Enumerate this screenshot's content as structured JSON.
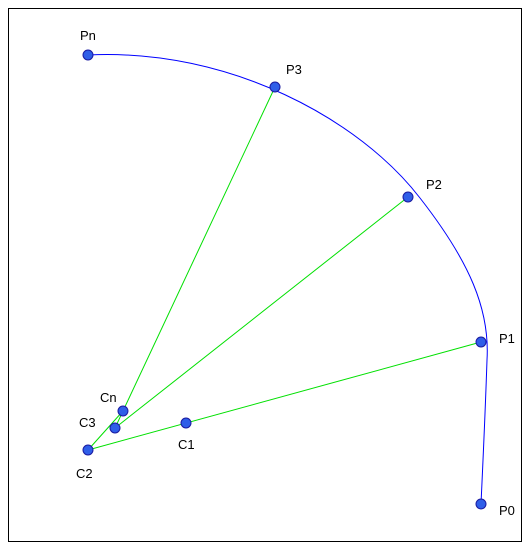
{
  "diagram": {
    "colors": {
      "arc": "#0000ff",
      "line": "#00e000",
      "point_fill": "#2f5ee8",
      "point_stroke": "#1a1aa0",
      "frame": "#000000"
    },
    "labels": {
      "pn": "Pn",
      "p3": "P3",
      "p2": "P2",
      "p1": "P1",
      "p0": "P0",
      "cn": "Cn",
      "c3": "C3",
      "c2": "C2",
      "c1": "C1"
    }
  }
}
